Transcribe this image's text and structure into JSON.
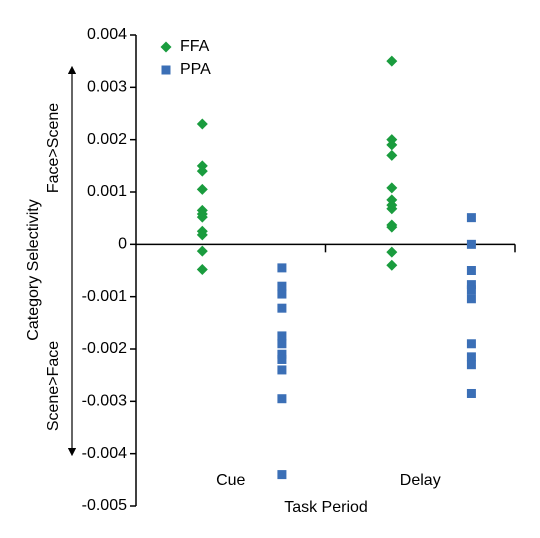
{
  "chart_data": {
    "type": "strip",
    "x_label": "Task Period",
    "y_label": "Category Selectivity",
    "annotations": [
      "Face>Scene",
      "Scene>Face"
    ],
    "categories": [
      "Cue",
      "Delay"
    ],
    "series": [
      {
        "name": "FFA",
        "color": "#1a9c3e",
        "marker": "diamond",
        "values": [
          [
            0.0023,
            0.0015,
            0.0014,
            0.00105,
            0.00065,
            0.00058,
            0.00052,
            0.00025,
            0.00018,
            -0.00013,
            -0.00048
          ],
          [
            0.0035,
            0.002,
            0.0019,
            0.0017,
            0.00108,
            0.00085,
            0.00075,
            0.00068,
            0.00037,
            0.00033,
            -0.00015,
            -0.0004
          ]
        ]
      },
      {
        "name": "PPA",
        "color": "#3b6fb6",
        "marker": "square",
        "values": [
          [
            -0.00045,
            -0.0008,
            -0.00095,
            -0.00122,
            -0.00175,
            -0.0019,
            -0.0021,
            -0.0022,
            -0.0024,
            -0.00295,
            -0.0044
          ],
          [
            0.00051,
            0,
            -0.0005,
            -0.00077,
            -0.00087,
            -0.00104,
            -0.0019,
            -0.00215,
            -0.0023,
            -0.00285
          ]
        ]
      }
    ],
    "ylim": [
      -0.005,
      0.004
    ],
    "yticks": [
      0.004,
      0.003,
      0.002,
      0.001,
      0,
      -0.001,
      -0.002,
      -0.003,
      -0.004,
      -0.005
    ],
    "legend": "upper left"
  }
}
